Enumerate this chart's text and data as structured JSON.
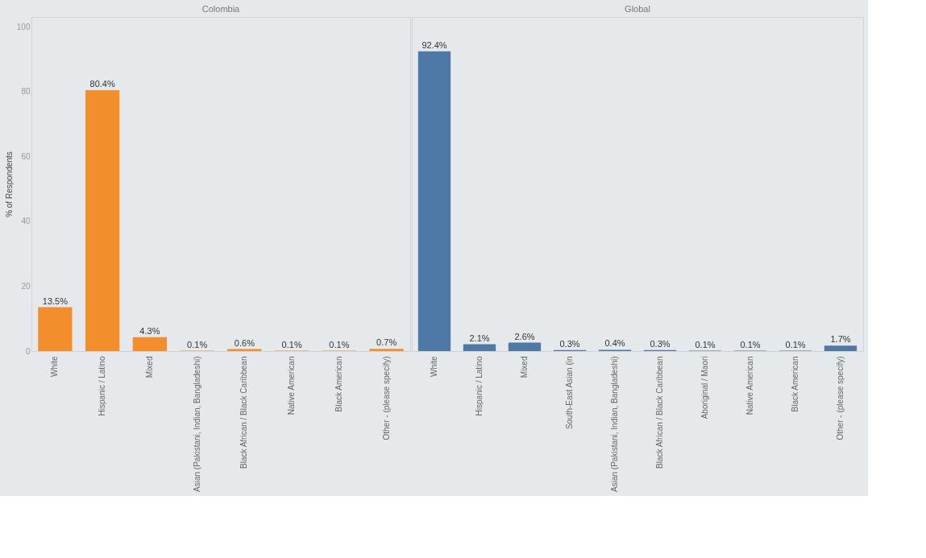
{
  "chart_data": [
    {
      "type": "bar",
      "title": "Colombia",
      "ylabel": "% of Respondents",
      "categories": [
        "White",
        "Hispanic / Latino",
        "Mixed",
        "Asian (Pakistani, Indian, Bangladeshi)",
        "Black African / Black Caribbean",
        "Native American",
        "Black American",
        "Other - (please specify)"
      ],
      "values": [
        13.5,
        80.4,
        4.3,
        0.1,
        0.6,
        0.1,
        0.1,
        0.7
      ],
      "value_labels": [
        "13.5%",
        "80.4%",
        "4.3%",
        "0.1%",
        "0.6%",
        "0.1%",
        "0.1%",
        "0.7%"
      ],
      "color": "#f28e2b",
      "ylim": [
        0,
        103
      ],
      "yticks": [
        0,
        20,
        40,
        60,
        80,
        100
      ],
      "grid": false
    },
    {
      "type": "bar",
      "title": "Global",
      "categories": [
        "White",
        "Hispanic / Latino",
        "Mixed",
        "South-East Asian (in",
        "Asian (Pakistani, Indian, Bangladeshi)",
        "Black African / Black Caribbean",
        "Aboriginal / Maori",
        "Native American",
        "Black American",
        "Other - (please specify)"
      ],
      "values": [
        92.4,
        2.1,
        2.6,
        0.3,
        0.4,
        0.3,
        0.1,
        0.1,
        0.1,
        1.7
      ],
      "value_labels": [
        "92.4%",
        "2.1%",
        "2.6%",
        "0.3%",
        "0.4%",
        "0.3%",
        "0.1%",
        "0.1%",
        "0.1%",
        "1.7%"
      ],
      "color": "#4e79a7",
      "ylim": [
        0,
        103
      ],
      "yticks": [
        0,
        20,
        40,
        60,
        80,
        100
      ],
      "grid": false,
      "tick_labels": "x"
    }
  ]
}
